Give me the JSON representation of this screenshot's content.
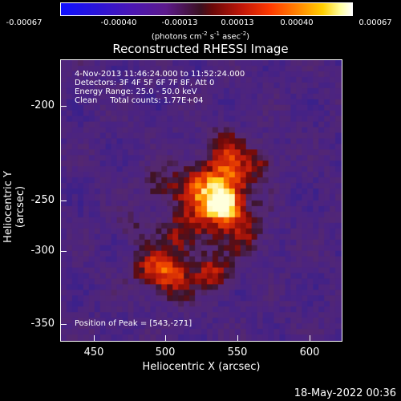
{
  "colorbar": {
    "ticks": [
      "-0.00067",
      "-0.00040",
      "-0.00013",
      "0.00013",
      "0.00040",
      "0.00067"
    ],
    "unit_prefix": "(photons cm",
    "unit_sup1": "-2",
    "unit_mid1": " s",
    "unit_sup2": "-1",
    "unit_mid2": " asec",
    "unit_sup3": "-2",
    "unit_suffix": ")"
  },
  "title": "Reconstructed RHESSI Image",
  "annotations": {
    "time": "4-Nov-2013 11:46:24.000 to 11:52:24.000",
    "detectors": "Detectors: 3F 4F 5F 6F 7F 8F, Att 0",
    "energy": "Energy Range: 25.0 - 50.0 keV",
    "clean": "Clean     Total counts: 1.77E+04",
    "peak": "Position of Peak = [543,-271]"
  },
  "axes": {
    "xlabel": "Heliocentric X (arcsec)",
    "ylabel": "Heliocentric Y (arcsec)",
    "xticks": [
      "450",
      "500",
      "550",
      "600"
    ],
    "yticks": [
      "-200",
      "-250",
      "-300",
      "-350"
    ]
  },
  "datestamp": "18-May-2022 00:36"
}
